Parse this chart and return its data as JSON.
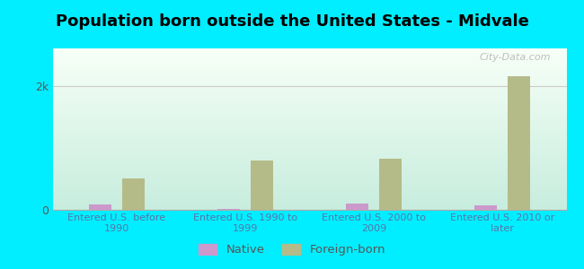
{
  "title": "Population born outside the United States - Midvale",
  "categories": [
    "Entered U.S. before\n1990",
    "Entered U.S. 1990 to\n1999",
    "Entered U.S. 2000 to\n2009",
    "Entered U.S. 2010 or\nlater"
  ],
  "native_values": [
    90,
    12,
    95,
    70
  ],
  "foreign_values": [
    500,
    800,
    820,
    2150
  ],
  "native_color": "#cc99cc",
  "foreign_color": "#b5bb88",
  "outer_bg": "#00eeff",
  "plot_bg_top": "#f5fffa",
  "plot_bg_bottom": "#c8eee0",
  "title_fontsize": 13,
  "ytick_labels": [
    "0",
    "2k"
  ],
  "ytick_values": [
    0,
    2000
  ],
  "ylim": [
    0,
    2600
  ],
  "bar_width": 0.18,
  "group_positions": [
    1,
    2,
    3,
    4
  ],
  "watermark": "City-Data.com",
  "label_color": "#5577aa",
  "ytick_color": "#555555"
}
